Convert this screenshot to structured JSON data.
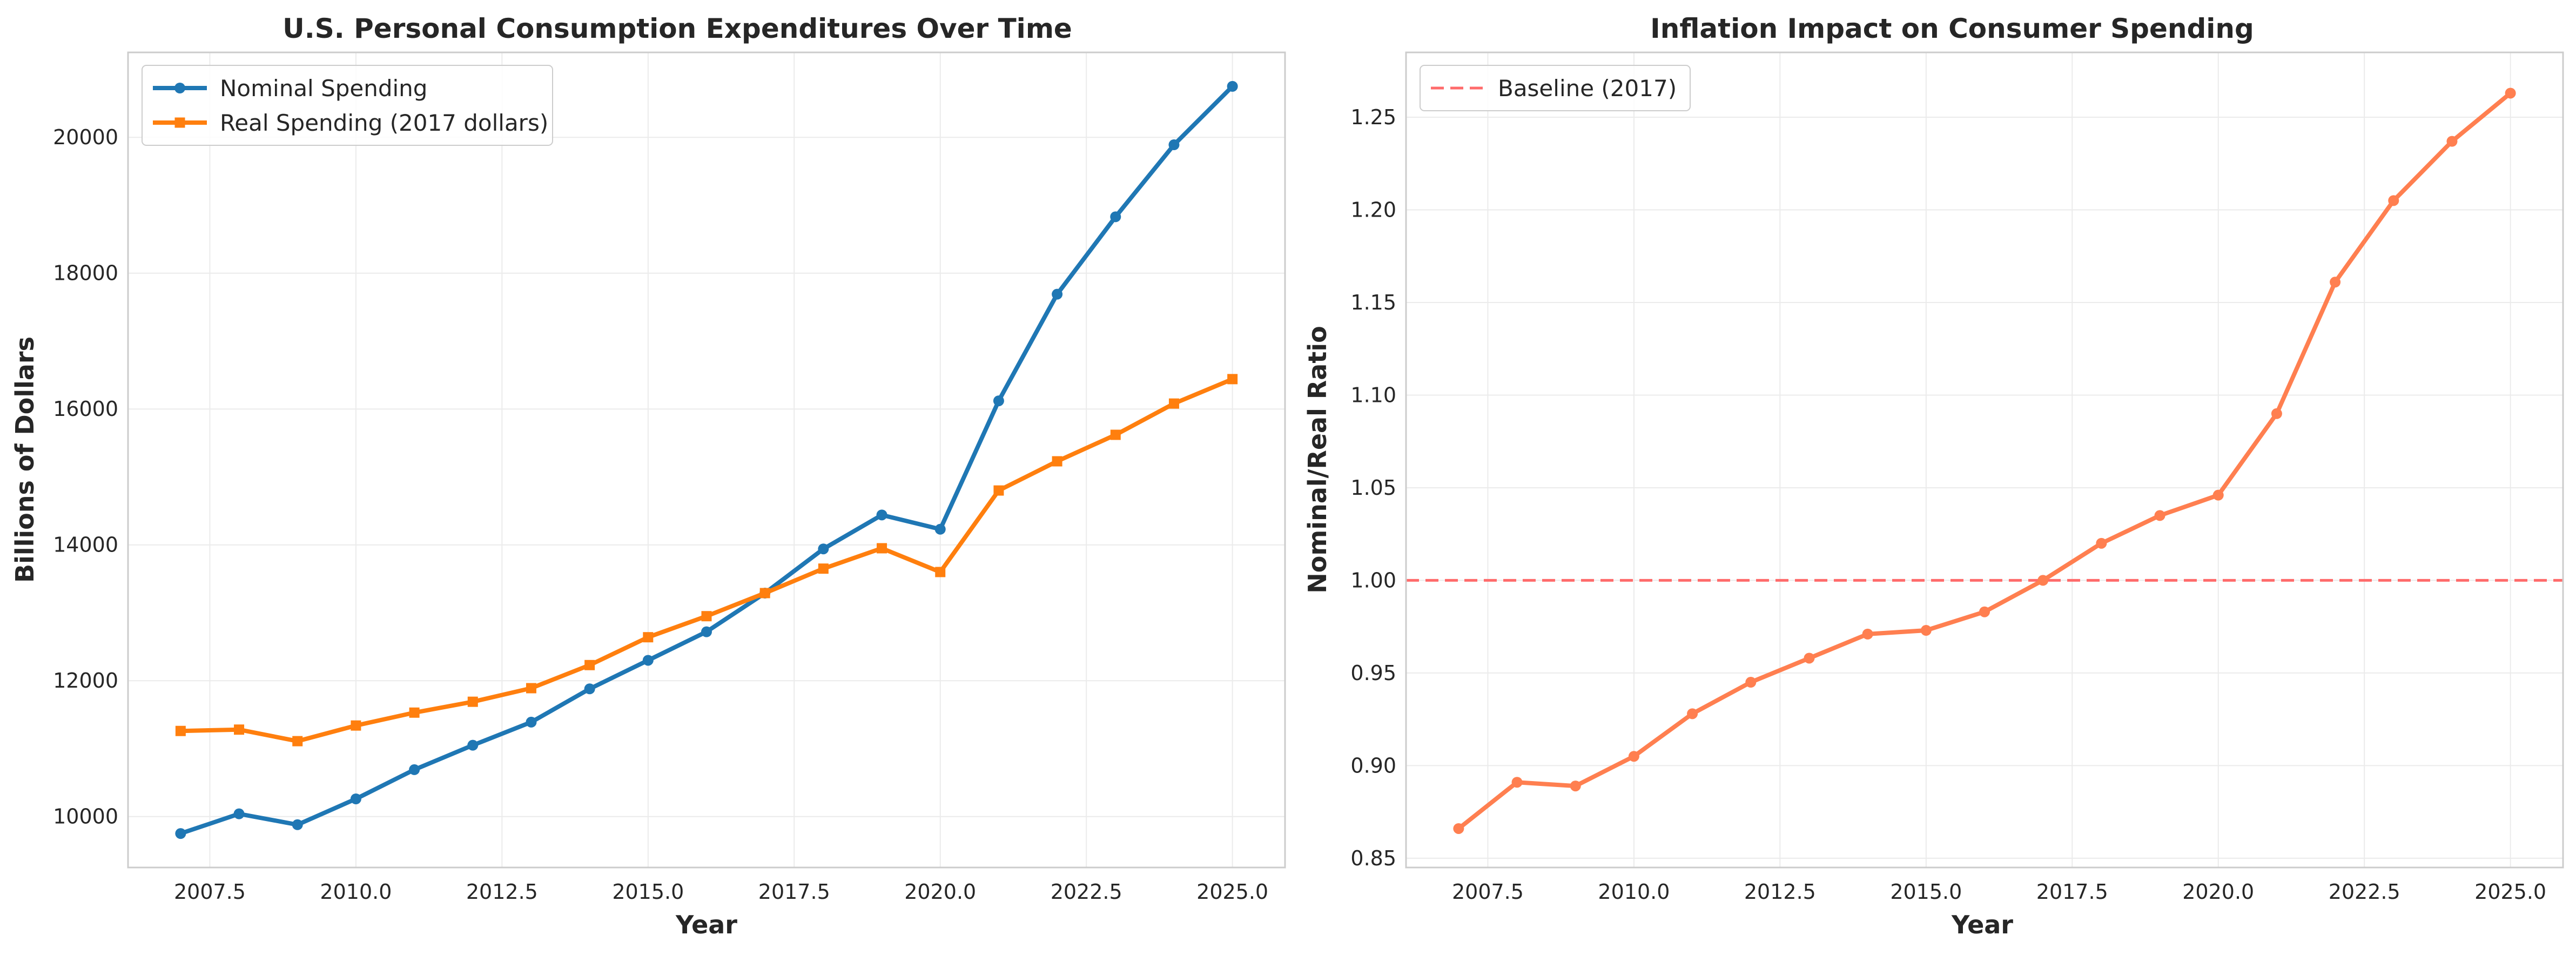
{
  "colors": {
    "nominal": "#1f77b4",
    "real": "#ff7f0e",
    "ratio": "#ff7f50",
    "baseline": "#ff6b6b",
    "grid": "#ebebeb",
    "frame": "#cccccc"
  },
  "chart_data": [
    {
      "type": "line",
      "title": "U.S. Personal Consumption Expenditures Over Time",
      "xlabel": "Year",
      "ylabel": "Billions of Dollars",
      "xlim": [
        2006.1,
        2025.9
      ],
      "ylim": [
        9250,
        21250
      ],
      "xticks": [
        2007.5,
        2010.0,
        2012.5,
        2015.0,
        2017.5,
        2020.0,
        2022.5,
        2025.0
      ],
      "xtick_labels": [
        "2007.5",
        "2010.0",
        "2012.5",
        "2015.0",
        "2017.5",
        "2020.0",
        "2022.5",
        "2025.0"
      ],
      "yticks": [
        10000,
        12000,
        14000,
        16000,
        18000,
        20000
      ],
      "ytick_labels": [
        "10000",
        "12000",
        "14000",
        "16000",
        "18000",
        "20000"
      ],
      "grid": true,
      "legend_position": "top-left",
      "x": [
        2007,
        2008,
        2009,
        2010,
        2011,
        2012,
        2013,
        2014,
        2015,
        2016,
        2017,
        2018,
        2019,
        2020,
        2021,
        2022,
        2023,
        2024,
        2025
      ],
      "series": [
        {
          "name": "Nominal Spending",
          "marker": "circle",
          "color_key": "nominal",
          "values": [
            9750,
            10040,
            9880,
            10260,
            10690,
            11050,
            11390,
            11880,
            12300,
            12720,
            13290,
            13940,
            14440,
            14230,
            16120,
            17690,
            18830,
            19890,
            20750
          ]
        },
        {
          "name": "Real Spending (2017 dollars)",
          "marker": "square",
          "color_key": "real",
          "values": [
            11260,
            11280,
            11110,
            11340,
            11530,
            11690,
            11890,
            12230,
            12640,
            12950,
            13290,
            13650,
            13950,
            13600,
            14800,
            15230,
            15620,
            16080,
            16440
          ]
        }
      ]
    },
    {
      "type": "line",
      "title": "Inflation Impact on Consumer Spending",
      "xlabel": "Year",
      "ylabel": "Nominal/Real Ratio",
      "xlim": [
        2006.1,
        2025.9
      ],
      "ylim": [
        0.845,
        1.285
      ],
      "xticks": [
        2007.5,
        2010.0,
        2012.5,
        2015.0,
        2017.5,
        2020.0,
        2022.5,
        2025.0
      ],
      "xtick_labels": [
        "2007.5",
        "2010.0",
        "2012.5",
        "2015.0",
        "2017.5",
        "2020.0",
        "2022.5",
        "2025.0"
      ],
      "yticks": [
        0.85,
        0.9,
        0.95,
        1.0,
        1.05,
        1.1,
        1.15,
        1.2,
        1.25
      ],
      "ytick_labels": [
        "0.85",
        "0.90",
        "0.95",
        "1.00",
        "1.05",
        "1.10",
        "1.15",
        "1.20",
        "1.25"
      ],
      "grid": true,
      "legend_position": "top-left",
      "x": [
        2007,
        2008,
        2009,
        2010,
        2011,
        2012,
        2013,
        2014,
        2015,
        2016,
        2017,
        2018,
        2019,
        2020,
        2021,
        2022,
        2023,
        2024,
        2025
      ],
      "series": [
        {
          "name": "",
          "marker": "circle",
          "color_key": "ratio",
          "values": [
            0.866,
            0.891,
            0.889,
            0.905,
            0.928,
            0.945,
            0.958,
            0.971,
            0.973,
            0.983,
            1.0,
            1.02,
            1.035,
            1.046,
            1.09,
            1.161,
            1.205,
            1.237,
            1.263
          ]
        }
      ],
      "reference_lines": [
        {
          "name": "Baseline (2017)",
          "y": 1.0,
          "style": "dashed",
          "color_key": "baseline"
        }
      ]
    }
  ]
}
